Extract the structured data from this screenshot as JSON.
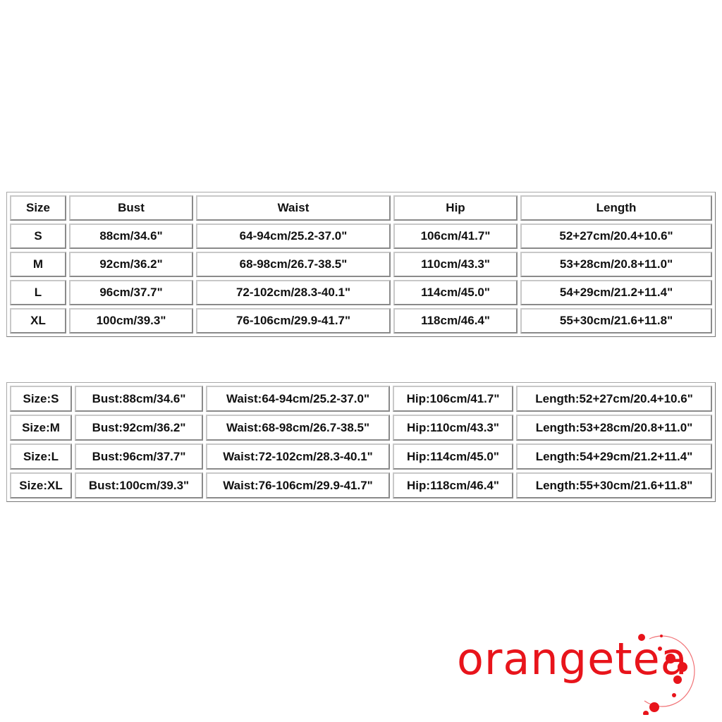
{
  "table1": {
    "headers": [
      "Size",
      "Bust",
      "Waist",
      "Hip",
      "Length"
    ],
    "rows": [
      [
        "S",
        "88cm/34.6\"",
        "64-94cm/25.2-37.0\"",
        "106cm/41.7\"",
        "52+27cm/20.4+10.6\""
      ],
      [
        "M",
        "92cm/36.2\"",
        "68-98cm/26.7-38.5\"",
        "110cm/43.3\"",
        "53+28cm/20.8+11.0\""
      ],
      [
        "L",
        "96cm/37.7\"",
        "72-102cm/28.3-40.1\"",
        "114cm/45.0\"",
        "54+29cm/21.2+11.4\""
      ],
      [
        "XL",
        "100cm/39.3\"",
        "76-106cm/29.9-41.7\"",
        "118cm/46.4\"",
        "55+30cm/21.6+11.8\""
      ]
    ]
  },
  "table2": {
    "rows": [
      [
        "Size:S",
        "Bust:88cm/34.6\"",
        "Waist:64-94cm/25.2-37.0\"",
        "Hip:106cm/41.7\"",
        "Length:52+27cm/20.4+10.6\""
      ],
      [
        "Size:M",
        "Bust:92cm/36.2\"",
        "Waist:68-98cm/26.7-38.5\"",
        "Hip:110cm/43.3\"",
        "Length:53+28cm/20.8+11.0\""
      ],
      [
        "Size:L",
        "Bust:96cm/37.7\"",
        "Waist:72-102cm/28.3-40.1\"",
        "Hip:114cm/45.0\"",
        "Length:54+29cm/21.2+11.4\""
      ],
      [
        "Size:XL",
        "Bust:100cm/39.3\"",
        "Waist:76-106cm/29.9-41.7\"",
        "Hip:118cm/46.4\"",
        "Length:55+30cm/21.6+11.8\""
      ]
    ]
  },
  "logo": {
    "text": "orangetea",
    "color": "#e8141b"
  }
}
